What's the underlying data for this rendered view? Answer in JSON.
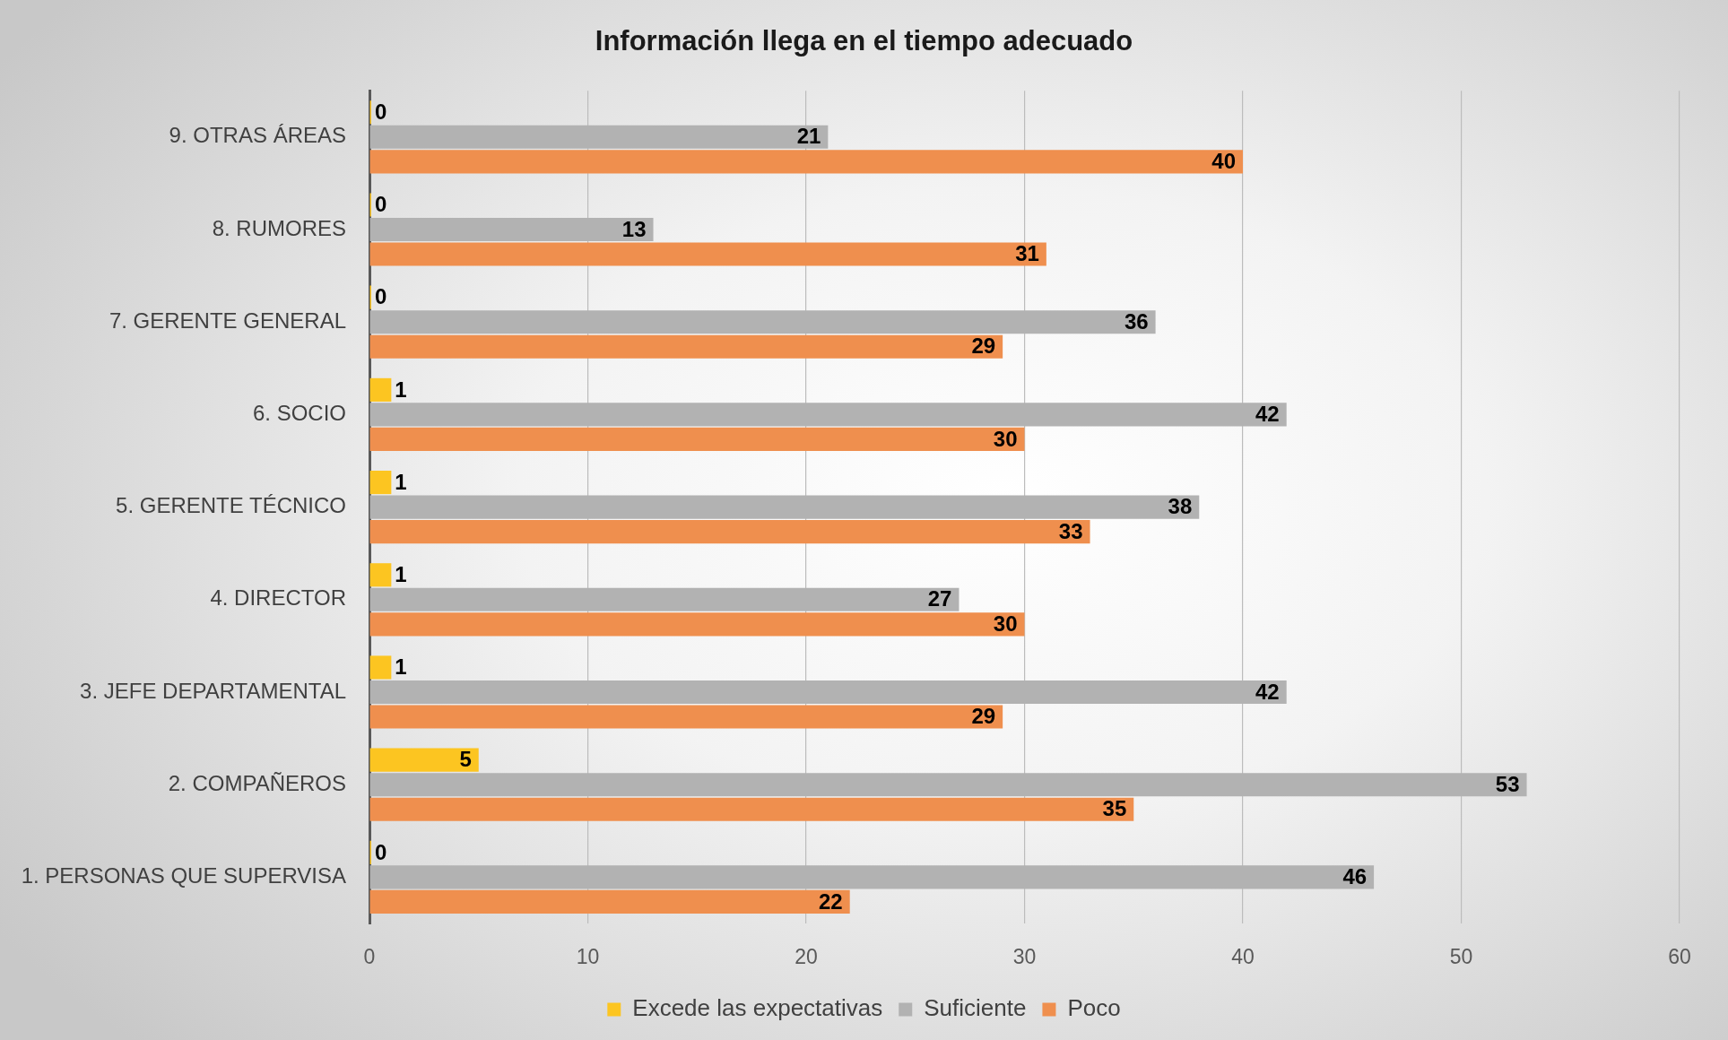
{
  "chart_data": {
    "type": "bar",
    "orientation": "horizontal",
    "title": "Información llega en el tiempo adecuado",
    "categories": [
      "9. OTRAS ÁREAS",
      "8. RUMORES",
      "7. GERENTE GENERAL",
      "6. SOCIO",
      "5. GERENTE TÉCNICO",
      "4. DIRECTOR",
      "3. JEFE DEPARTAMENTAL",
      "2. COMPAÑEROS",
      "1. PERSONAS QUE SUPERVISA"
    ],
    "series": [
      {
        "name": "Excede las expectativas",
        "color": "#fcc521",
        "values": [
          0,
          0,
          0,
          1,
          1,
          1,
          1,
          5,
          0
        ]
      },
      {
        "name": "Suficiente",
        "color": "#b2b2b2",
        "values": [
          21,
          13,
          36,
          42,
          38,
          27,
          42,
          53,
          46
        ]
      },
      {
        "name": "Poco",
        "color": "#ef8f4e",
        "values": [
          40,
          31,
          29,
          30,
          33,
          30,
          29,
          35,
          22
        ]
      }
    ],
    "xlim": [
      0,
      60
    ],
    "xticks": [
      0,
      10,
      20,
      30,
      40,
      50,
      60
    ],
    "grid": "x",
    "legend": "bottom",
    "data_labels": true
  }
}
